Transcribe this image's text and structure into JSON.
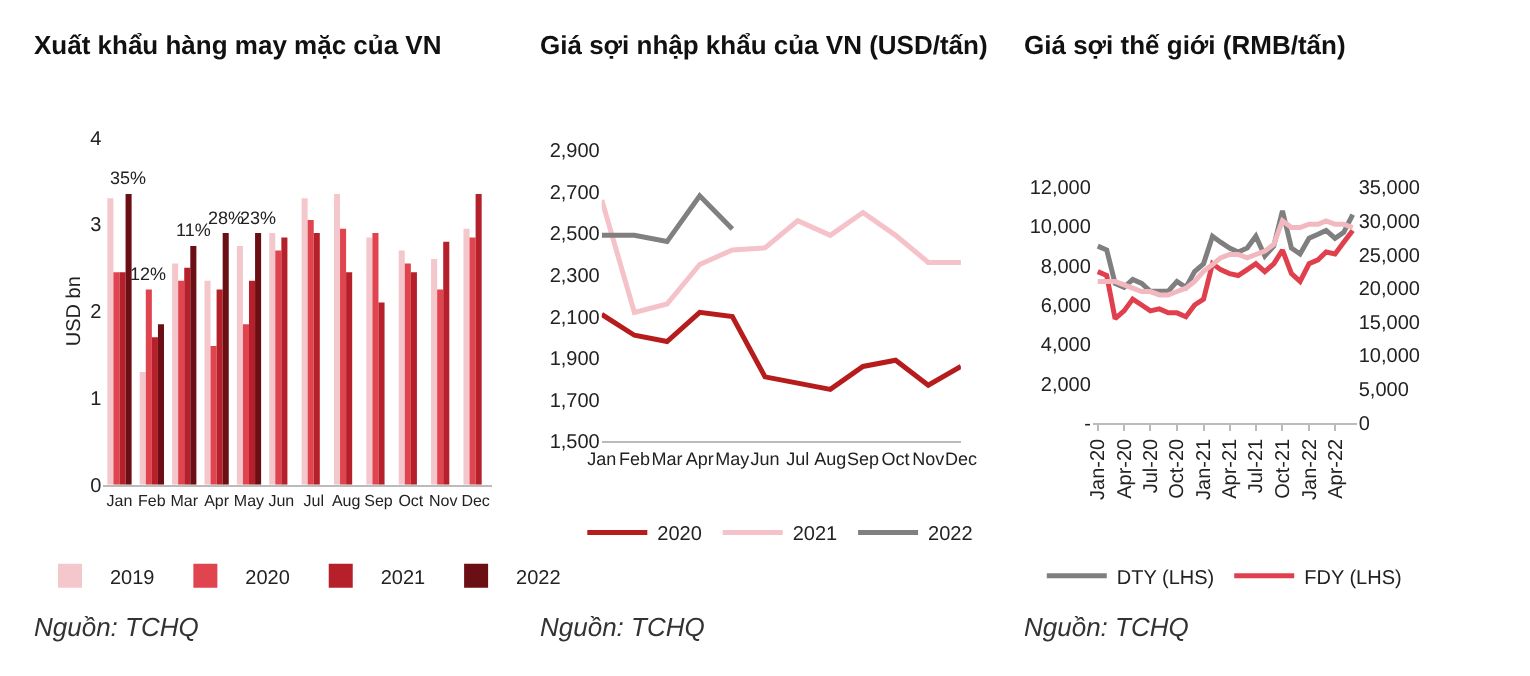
{
  "chart_data": [
    {
      "type": "bar",
      "title": "Xuất khẩu hàng may mặc của VN",
      "ylabel": "USD bn",
      "categories": [
        "Jan",
        "Feb",
        "Mar",
        "Apr",
        "May",
        "Jun",
        "Jul",
        "Aug",
        "Sep",
        "Oct",
        "Nov",
        "Dec"
      ],
      "series": [
        {
          "name": "2019",
          "color": "#f4c7cc",
          "values": [
            3.3,
            1.3,
            2.55,
            2.35,
            2.75,
            2.9,
            3.3,
            3.35,
            2.85,
            2.7,
            2.6,
            2.95
          ]
        },
        {
          "name": "2020",
          "color": "#e0444f",
          "values": [
            2.45,
            2.25,
            2.35,
            1.6,
            1.85,
            2.7,
            3.05,
            2.95,
            2.9,
            2.55,
            2.25,
            2.85
          ]
        },
        {
          "name": "2021",
          "color": "#b5202b",
          "values": [
            2.45,
            1.7,
            2.5,
            2.25,
            2.35,
            2.85,
            2.9,
            2.45,
            2.1,
            2.45,
            2.8,
            3.35
          ]
        },
        {
          "name": "2022",
          "color": "#6b0f15",
          "values": [
            3.35,
            1.85,
            2.75,
            2.9,
            2.9,
            null,
            null,
            null,
            null,
            null,
            null,
            null
          ]
        }
      ],
      "ylim": [
        0,
        4
      ],
      "yticks": [
        0,
        1,
        2,
        3,
        4
      ],
      "legend": "bottom",
      "annotations": [
        {
          "text": "35%",
          "x": "Jan",
          "y": 3.35
        },
        {
          "text": "12%",
          "x": "Feb",
          "y": 2.25
        },
        {
          "text": "11%",
          "x": "Mar",
          "y": 2.75
        },
        {
          "text": "28%",
          "x": "Apr",
          "y": 2.9
        },
        {
          "text": "23%",
          "x": "May",
          "y": 2.9
        },
        "Nguồn: TCHQ"
      ]
    },
    {
      "type": "line",
      "title": "Giá sợi nhập khẩu của VN (USD/tấn)",
      "categories": [
        "Jan",
        "Feb",
        "Mar",
        "Apr",
        "May",
        "Jun",
        "Jul",
        "Aug",
        "Sep",
        "Oct",
        "Nov",
        "Dec"
      ],
      "series": [
        {
          "name": "2020",
          "color": "#b71c1c",
          "values": [
            2110,
            2010,
            1980,
            2120,
            2100,
            1810,
            1780,
            1750,
            1860,
            1890,
            1770,
            1860
          ]
        },
        {
          "name": "2021",
          "color": "#f4c2c8",
          "values": [
            2660,
            2120,
            2160,
            2350,
            2420,
            2430,
            2560,
            2490,
            2600,
            2490,
            2360,
            2360
          ]
        },
        {
          "name": "2022",
          "color": "#808080",
          "values": [
            2490,
            2490,
            2460,
            2680,
            2520,
            null,
            null,
            null,
            null,
            null,
            null,
            null
          ]
        }
      ],
      "ylim": [
        1500,
        2900
      ],
      "yticks": [
        {
          "value": 1500,
          "label": "1,500"
        },
        {
          "value": 1700,
          "label": "1,700"
        },
        {
          "value": 1900,
          "label": "1,900"
        },
        {
          "value": 2100,
          "label": "2,100"
        },
        {
          "value": 2300,
          "label": "2,300"
        },
        {
          "value": 2500,
          "label": "2,500"
        },
        {
          "value": 2700,
          "label": "2,700"
        },
        {
          "value": 2900,
          "label": "2,900"
        }
      ],
      "legend": "bottom",
      "annotations": [
        "Nguồn: TCHQ"
      ]
    },
    {
      "type": "line",
      "title": "Giá sợi thế giới (RMB/tấn)",
      "x": [
        "2020-01",
        "2020-02",
        "2020-03",
        "2020-04",
        "2020-05",
        "2020-06",
        "2020-07",
        "2020-08",
        "2020-09",
        "2020-10",
        "2020-11",
        "2020-12",
        "2021-01",
        "2021-02",
        "2021-03",
        "2021-04",
        "2021-05",
        "2021-06",
        "2021-07",
        "2021-08",
        "2021-09",
        "2021-10",
        "2021-11",
        "2021-12",
        "2022-01",
        "2022-02",
        "2022-03",
        "2022-04",
        "2022-05",
        "2022-06"
      ],
      "series": [
        {
          "name": "DTY (LHS)",
          "color": "#7f7f7f",
          "values": [
            9000,
            8800,
            7100,
            6900,
            7300,
            7100,
            6700,
            6700,
            6700,
            7200,
            6900,
            7700,
            8100,
            9500,
            9200,
            8900,
            8700,
            8900,
            9500,
            8500,
            9000,
            10800,
            8900,
            8600,
            9400,
            9600,
            9800,
            9400,
            9700,
            10600
          ]
        },
        {
          "name": "FDY (LHS)",
          "color": "#e0404e",
          "values": [
            7700,
            7500,
            5300,
            5700,
            6300,
            6000,
            5700,
            5800,
            5600,
            5600,
            5400,
            6000,
            6300,
            8100,
            7800,
            7600,
            7500,
            7800,
            8100,
            7700,
            8100,
            8800,
            7600,
            7200,
            8100,
            8300,
            8700,
            8600,
            9200,
            9800
          ]
        },
        {
          "color": "#f2b8c0",
          "axis": "y2",
          "values": [
            21000,
            21000,
            21000,
            20500,
            20000,
            19500,
            19500,
            19000,
            19000,
            19500,
            20000,
            21000,
            22500,
            23500,
            24500,
            25000,
            25000,
            24500,
            25000,
            25500,
            26500,
            30000,
            29000,
            29000,
            29500,
            29500,
            30000,
            29500,
            29500,
            29000
          ]
        }
      ],
      "xlim": [
        "2019-12-15",
        "2022-06-15"
      ],
      "xticks": [
        {
          "value": "2020-01",
          "label": "Jan-20"
        },
        {
          "value": "2020-04",
          "label": "Apr-20"
        },
        {
          "value": "2020-07",
          "label": "Jul-20"
        },
        {
          "value": "2020-10",
          "label": "Oct-20"
        },
        {
          "value": "2021-01",
          "label": "Jan-21"
        },
        {
          "value": "2021-04",
          "label": "Apr-21"
        },
        {
          "value": "2021-07",
          "label": "Jul-21"
        },
        {
          "value": "2021-10",
          "label": "Oct-21"
        },
        {
          "value": "2022-01",
          "label": "Jan-22"
        },
        {
          "value": "2022-04",
          "label": "Apr-22"
        }
      ],
      "ylim": [
        0,
        12000
      ],
      "yticks": [
        {
          "value": 0,
          "label": "-"
        },
        {
          "value": 2000,
          "label": "2,000"
        },
        {
          "value": 4000,
          "label": "4,000"
        },
        {
          "value": 6000,
          "label": "6,000"
        },
        {
          "value": 8000,
          "label": "8,000"
        },
        {
          "value": 10000,
          "label": "10,000"
        },
        {
          "value": 12000,
          "label": "12,000"
        }
      ],
      "y2lim": [
        0,
        35000
      ],
      "y2ticks": [
        0,
        {
          "value": 5000,
          "label": "5,000"
        },
        {
          "value": 10000,
          "label": "10,000"
        },
        {
          "value": 15000,
          "label": "15,000"
        },
        {
          "value": 20000,
          "label": "20,000"
        },
        {
          "value": 25000,
          "label": "25,000"
        },
        {
          "value": 30000,
          "label": "30,000"
        },
        {
          "value": 35000,
          "label": "35,000"
        }
      ],
      "legend": "bottom",
      "annotations": [
        "Nguồn: TCHQ"
      ]
    }
  ]
}
